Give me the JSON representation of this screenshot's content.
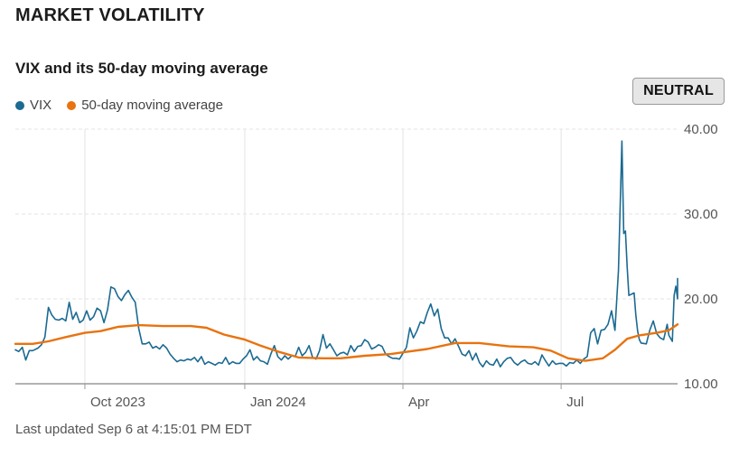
{
  "header": {
    "title": "MARKET VOLATILITY"
  },
  "sentiment_badge": "NEUTRAL",
  "footer": {
    "last_updated": "Last updated Sep 6 at 4:15:01 PM EDT"
  },
  "colors": {
    "vix": "#1b6a92",
    "ma": "#e8730f",
    "grid": "#e3e3e3",
    "axis": "#555555"
  },
  "chart_data": {
    "type": "line",
    "title": "VIX and its 50-day moving average",
    "xlabel": "",
    "ylabel": "",
    "x_tick_labels": [
      "Oct 2023",
      "Jan 2024",
      "Apr",
      "Jul"
    ],
    "x_ticks": [
      "2023-10-01",
      "2024-01-01",
      "2024-04-01",
      "2024-07-01"
    ],
    "x_range": [
      "2023-08-22",
      "2024-09-06"
    ],
    "yticks": [
      10,
      20,
      30,
      40
    ],
    "ytick_labels": [
      "10.00",
      "20.00",
      "30.00",
      "40.00"
    ],
    "ylim": [
      10,
      40
    ],
    "grid": true,
    "legend": "top-left",
    "series": [
      {
        "name": "VIX",
        "points": [
          [
            "2023-08-22",
            14.0
          ],
          [
            "2023-08-24",
            13.8
          ],
          [
            "2023-08-26",
            14.3
          ],
          [
            "2023-08-28",
            12.8
          ],
          [
            "2023-08-30",
            13.9
          ],
          [
            "2023-09-01",
            13.9
          ],
          [
            "2023-09-04",
            14.2
          ],
          [
            "2023-09-06",
            14.6
          ],
          [
            "2023-09-08",
            15.5
          ],
          [
            "2023-09-10",
            19.0
          ],
          [
            "2023-09-12",
            18.1
          ],
          [
            "2023-09-14",
            17.6
          ],
          [
            "2023-09-16",
            17.5
          ],
          [
            "2023-09-18",
            17.7
          ],
          [
            "2023-09-20",
            17.4
          ],
          [
            "2023-09-22",
            19.6
          ],
          [
            "2023-09-24",
            17.6
          ],
          [
            "2023-09-26",
            18.4
          ],
          [
            "2023-09-28",
            17.2
          ],
          [
            "2023-09-30",
            17.5
          ],
          [
            "2023-10-02",
            18.6
          ],
          [
            "2023-10-04",
            17.5
          ],
          [
            "2023-10-06",
            17.9
          ],
          [
            "2023-10-08",
            18.9
          ],
          [
            "2023-10-10",
            18.6
          ],
          [
            "2023-10-12",
            17.2
          ],
          [
            "2023-10-14",
            18.7
          ],
          [
            "2023-10-16",
            21.4
          ],
          [
            "2023-10-18",
            21.2
          ],
          [
            "2023-10-20",
            20.3
          ],
          [
            "2023-10-22",
            19.8
          ],
          [
            "2023-10-24",
            20.5
          ],
          [
            "2023-10-26",
            21.0
          ],
          [
            "2023-10-28",
            20.2
          ],
          [
            "2023-10-30",
            19.6
          ],
          [
            "2023-11-01",
            16.5
          ],
          [
            "2023-11-03",
            14.7
          ],
          [
            "2023-11-05",
            14.7
          ],
          [
            "2023-11-07",
            14.9
          ],
          [
            "2023-11-09",
            14.2
          ],
          [
            "2023-11-11",
            14.4
          ],
          [
            "2023-11-13",
            14.1
          ],
          [
            "2023-11-15",
            14.6
          ],
          [
            "2023-11-17",
            14.2
          ],
          [
            "2023-11-19",
            13.5
          ],
          [
            "2023-11-21",
            13.0
          ],
          [
            "2023-11-23",
            12.6
          ],
          [
            "2023-11-25",
            12.8
          ],
          [
            "2023-11-27",
            12.7
          ],
          [
            "2023-11-29",
            12.9
          ],
          [
            "2023-12-01",
            12.8
          ],
          [
            "2023-12-03",
            13.1
          ],
          [
            "2023-12-05",
            12.6
          ],
          [
            "2023-12-07",
            13.2
          ],
          [
            "2023-12-09",
            12.3
          ],
          [
            "2023-12-11",
            12.6
          ],
          [
            "2023-12-13",
            12.4
          ],
          [
            "2023-12-15",
            12.2
          ],
          [
            "2023-12-17",
            12.5
          ],
          [
            "2023-12-19",
            12.4
          ],
          [
            "2023-12-21",
            13.1
          ],
          [
            "2023-12-23",
            12.3
          ],
          [
            "2023-12-25",
            12.6
          ],
          [
            "2023-12-27",
            12.4
          ],
          [
            "2023-12-29",
            12.4
          ],
          [
            "2023-12-31",
            12.9
          ],
          [
            "2024-01-02",
            13.3
          ],
          [
            "2024-01-04",
            14.0
          ],
          [
            "2024-01-06",
            12.8
          ],
          [
            "2024-01-08",
            13.2
          ],
          [
            "2024-01-10",
            12.7
          ],
          [
            "2024-01-12",
            12.6
          ],
          [
            "2024-01-14",
            12.3
          ],
          [
            "2024-01-16",
            13.5
          ],
          [
            "2024-01-18",
            14.5
          ],
          [
            "2024-01-20",
            13.2
          ],
          [
            "2024-01-22",
            12.8
          ],
          [
            "2024-01-24",
            13.3
          ],
          [
            "2024-01-26",
            12.9
          ],
          [
            "2024-01-28",
            13.3
          ],
          [
            "2024-01-30",
            13.2
          ],
          [
            "2024-02-01",
            14.3
          ],
          [
            "2024-02-03",
            13.3
          ],
          [
            "2024-02-05",
            13.7
          ],
          [
            "2024-02-07",
            14.5
          ],
          [
            "2024-02-09",
            13.1
          ],
          [
            "2024-02-11",
            12.9
          ],
          [
            "2024-02-13",
            13.9
          ],
          [
            "2024-02-15",
            15.8
          ],
          [
            "2024-02-17",
            14.2
          ],
          [
            "2024-02-19",
            14.7
          ],
          [
            "2024-02-21",
            14.0
          ],
          [
            "2024-02-23",
            13.3
          ],
          [
            "2024-02-25",
            13.6
          ],
          [
            "2024-02-27",
            13.7
          ],
          [
            "2024-02-29",
            13.4
          ],
          [
            "2024-03-02",
            14.5
          ],
          [
            "2024-03-04",
            13.8
          ],
          [
            "2024-03-06",
            14.4
          ],
          [
            "2024-03-08",
            14.5
          ],
          [
            "2024-03-10",
            15.2
          ],
          [
            "2024-03-12",
            14.9
          ],
          [
            "2024-03-14",
            14.1
          ],
          [
            "2024-03-16",
            14.3
          ],
          [
            "2024-03-18",
            14.6
          ],
          [
            "2024-03-20",
            14.4
          ],
          [
            "2024-03-22",
            13.5
          ],
          [
            "2024-03-24",
            13.2
          ],
          [
            "2024-03-26",
            13.0
          ],
          [
            "2024-03-28",
            13.0
          ],
          [
            "2024-03-30",
            12.9
          ],
          [
            "2024-04-01",
            13.6
          ],
          [
            "2024-04-03",
            14.3
          ],
          [
            "2024-04-05",
            16.6
          ],
          [
            "2024-04-07",
            15.4
          ],
          [
            "2024-04-09",
            16.2
          ],
          [
            "2024-04-11",
            17.3
          ],
          [
            "2024-04-13",
            17.1
          ],
          [
            "2024-04-15",
            18.4
          ],
          [
            "2024-04-17",
            19.4
          ],
          [
            "2024-04-19",
            18.0
          ],
          [
            "2024-04-21",
            18.8
          ],
          [
            "2024-04-23",
            16.5
          ],
          [
            "2024-04-25",
            15.4
          ],
          [
            "2024-04-27",
            15.4
          ],
          [
            "2024-04-29",
            14.7
          ],
          [
            "2024-05-01",
            15.3
          ],
          [
            "2024-05-03",
            14.4
          ],
          [
            "2024-05-05",
            13.5
          ],
          [
            "2024-05-07",
            13.3
          ],
          [
            "2024-05-09",
            13.9
          ],
          [
            "2024-05-11",
            12.8
          ],
          [
            "2024-05-13",
            13.6
          ],
          [
            "2024-05-15",
            12.5
          ],
          [
            "2024-05-17",
            12.0
          ],
          [
            "2024-05-19",
            12.7
          ],
          [
            "2024-05-21",
            12.3
          ],
          [
            "2024-05-23",
            12.2
          ],
          [
            "2024-05-25",
            12.9
          ],
          [
            "2024-05-27",
            12.0
          ],
          [
            "2024-05-29",
            12.6
          ],
          [
            "2024-05-31",
            13.0
          ],
          [
            "2024-06-02",
            13.1
          ],
          [
            "2024-06-04",
            12.5
          ],
          [
            "2024-06-06",
            12.2
          ],
          [
            "2024-06-08",
            12.6
          ],
          [
            "2024-06-10",
            12.8
          ],
          [
            "2024-06-12",
            12.4
          ],
          [
            "2024-06-14",
            12.3
          ],
          [
            "2024-06-16",
            12.6
          ],
          [
            "2024-06-18",
            12.2
          ],
          [
            "2024-06-20",
            13.4
          ],
          [
            "2024-06-22",
            12.7
          ],
          [
            "2024-06-24",
            12.1
          ],
          [
            "2024-06-26",
            12.7
          ],
          [
            "2024-06-28",
            12.3
          ],
          [
            "2024-06-30",
            12.4
          ],
          [
            "2024-07-02",
            12.4
          ],
          [
            "2024-07-04",
            12.1
          ],
          [
            "2024-07-06",
            12.5
          ],
          [
            "2024-07-08",
            12.4
          ],
          [
            "2024-07-10",
            12.8
          ],
          [
            "2024-07-12",
            12.4
          ],
          [
            "2024-07-14",
            12.9
          ],
          [
            "2024-07-16",
            13.2
          ],
          [
            "2024-07-18",
            16.0
          ],
          [
            "2024-07-20",
            16.5
          ],
          [
            "2024-07-22",
            14.7
          ],
          [
            "2024-07-24",
            16.3
          ],
          [
            "2024-07-26",
            16.4
          ],
          [
            "2024-07-28",
            17.0
          ],
          [
            "2024-07-30",
            18.6
          ],
          [
            "2024-08-01",
            16.3
          ],
          [
            "2024-08-03",
            23.4
          ],
          [
            "2024-08-05",
            38.6
          ],
          [
            "2024-08-06",
            27.7
          ],
          [
            "2024-08-07",
            28.0
          ],
          [
            "2024-08-08",
            23.8
          ],
          [
            "2024-08-09",
            20.4
          ],
          [
            "2024-08-12",
            20.7
          ],
          [
            "2024-08-13",
            18.1
          ],
          [
            "2024-08-14",
            16.2
          ],
          [
            "2024-08-15",
            15.2
          ],
          [
            "2024-08-16",
            14.8
          ],
          [
            "2024-08-19",
            14.7
          ],
          [
            "2024-08-21",
            16.3
          ],
          [
            "2024-08-23",
            17.4
          ],
          [
            "2024-08-25",
            15.9
          ],
          [
            "2024-08-27",
            15.4
          ],
          [
            "2024-08-29",
            15.2
          ],
          [
            "2024-08-31",
            17.0
          ],
          [
            "2024-09-01",
            15.7
          ],
          [
            "2024-09-03",
            15.0
          ],
          [
            "2024-09-04",
            20.4
          ],
          [
            "2024-09-05",
            21.5
          ],
          [
            "2024-09-06",
            20.0
          ],
          [
            "2024-09-06",
            22.4
          ]
        ]
      },
      {
        "name": "50-day moving average",
        "points": [
          [
            "2023-08-22",
            14.7
          ],
          [
            "2023-09-01",
            14.7
          ],
          [
            "2023-09-10",
            15.0
          ],
          [
            "2023-09-20",
            15.5
          ],
          [
            "2023-10-01",
            16.0
          ],
          [
            "2023-10-10",
            16.2
          ],
          [
            "2023-10-20",
            16.7
          ],
          [
            "2023-11-01",
            16.9
          ],
          [
            "2023-11-15",
            16.8
          ],
          [
            "2023-12-01",
            16.8
          ],
          [
            "2023-12-10",
            16.6
          ],
          [
            "2023-12-20",
            15.8
          ],
          [
            "2024-01-01",
            15.2
          ],
          [
            "2024-01-10",
            14.5
          ],
          [
            "2024-01-20",
            13.8
          ],
          [
            "2024-02-01",
            13.1
          ],
          [
            "2024-02-15",
            13.0
          ],
          [
            "2024-02-25",
            13.0
          ],
          [
            "2024-03-10",
            13.3
          ],
          [
            "2024-03-25",
            13.5
          ],
          [
            "2024-04-01",
            13.7
          ],
          [
            "2024-04-15",
            14.1
          ],
          [
            "2024-05-01",
            14.8
          ],
          [
            "2024-05-15",
            14.8
          ],
          [
            "2024-06-01",
            14.4
          ],
          [
            "2024-06-15",
            14.3
          ],
          [
            "2024-06-25",
            13.9
          ],
          [
            "2024-07-05",
            13.0
          ],
          [
            "2024-07-15",
            12.7
          ],
          [
            "2024-07-25",
            13.0
          ],
          [
            "2024-08-01",
            14.0
          ],
          [
            "2024-08-08",
            15.3
          ],
          [
            "2024-08-15",
            15.7
          ],
          [
            "2024-08-25",
            16.0
          ],
          [
            "2024-09-01",
            16.3
          ],
          [
            "2024-09-06",
            17.0
          ]
        ]
      }
    ]
  }
}
